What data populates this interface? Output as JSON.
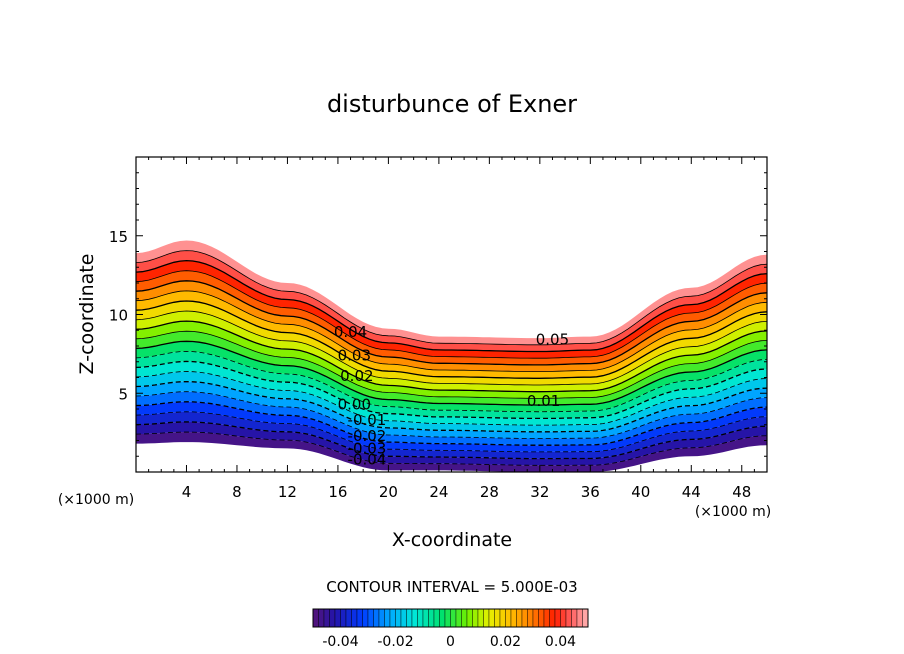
{
  "chart_data": {
    "type": "contour",
    "title": "disturbunce of Exner",
    "xlabel": "X-coordinate",
    "ylabel": "Z-coordinate",
    "x_unit": "(×1000 m)",
    "z_unit": "(×1000 m)",
    "xlim": [
      0,
      50
    ],
    "ylim": [
      0,
      20
    ],
    "x_ticks": [
      4,
      8,
      12,
      16,
      20,
      24,
      28,
      32,
      36,
      40,
      44,
      48
    ],
    "y_ticks": [
      5,
      10,
      15
    ],
    "contour_interval_text": "CONTOUR INTERVAL = 5.000E-03",
    "contour_levels": [
      -0.05,
      -0.045,
      -0.04,
      -0.035,
      -0.03,
      -0.025,
      -0.02,
      -0.015,
      -0.01,
      -0.005,
      0.0,
      0.005,
      0.01,
      0.015,
      0.02,
      0.025,
      0.03,
      0.035,
      0.04,
      0.045,
      0.05
    ],
    "contour_labels": [
      {
        "text": "0.04",
        "x": 17.0,
        "z": 8.9
      },
      {
        "text": "0.05",
        "x": 33.0,
        "z": 8.4
      },
      {
        "text": "0.03",
        "x": 17.3,
        "z": 7.4
      },
      {
        "text": "0.02",
        "x": 17.5,
        "z": 6.1
      },
      {
        "text": "0.00",
        "x": 17.3,
        "z": 4.3
      },
      {
        "text": "0.01",
        "x": 32.3,
        "z": 4.5
      },
      {
        "text": "-0.01",
        "x": 18.3,
        "z": 3.3
      },
      {
        "text": "-0.02",
        "x": 18.3,
        "z": 2.3
      },
      {
        "text": "-0.03",
        "x": 18.3,
        "z": 1.5
      },
      {
        "text": "-0.04",
        "x": 18.3,
        "z": 0.8
      }
    ],
    "top_boundary": [
      [
        0,
        13.9
      ],
      [
        4,
        14.7
      ],
      [
        12,
        12.0
      ],
      [
        20,
        9.1
      ],
      [
        24,
        8.6
      ],
      [
        32,
        8.5
      ],
      [
        36,
        8.6
      ],
      [
        44,
        11.7
      ],
      [
        50,
        13.8
      ]
    ],
    "bottom_boundary": [
      [
        0,
        1.8
      ],
      [
        4,
        1.9
      ],
      [
        12,
        1.5
      ],
      [
        20,
        0.1
      ],
      [
        24,
        0.1
      ],
      [
        32,
        0.0
      ],
      [
        36,
        0.0
      ],
      [
        44,
        1.0
      ],
      [
        50,
        1.7
      ]
    ],
    "colorbar": {
      "ticks": [
        "-0.04",
        "-0.02",
        "0",
        "0.02",
        "0.04"
      ],
      "range": [
        -0.05,
        0.05
      ]
    }
  }
}
